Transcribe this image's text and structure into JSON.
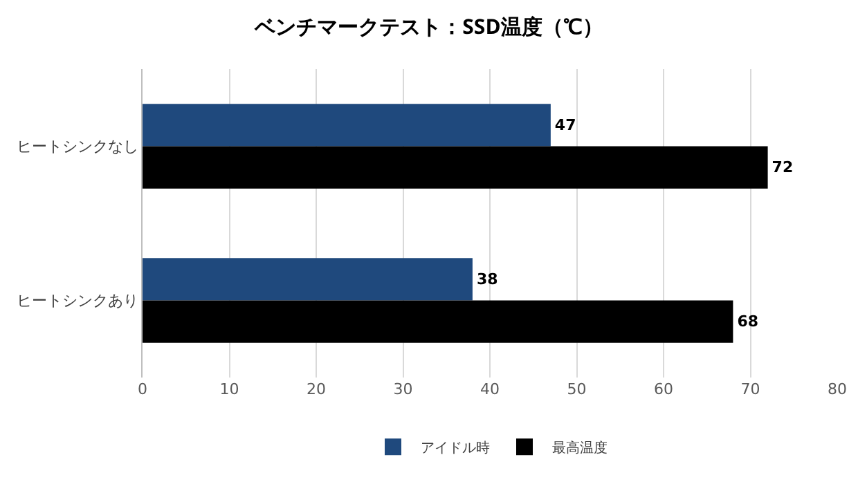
{
  "chart_data": {
    "type": "bar",
    "orientation": "horizontal",
    "title": "ベンチマークテスト：SSD温度（℃）",
    "categories": [
      "ヒートシンクなし",
      "ヒートシンクあり"
    ],
    "series": [
      {
        "name": "アイドル時",
        "color": "#1f497d",
        "values": [
          47,
          38
        ]
      },
      {
        "name": "最高温度",
        "color": "#000000",
        "values": [
          72,
          68
        ]
      }
    ],
    "xlim": [
      0,
      80
    ],
    "xticks": [
      0,
      10,
      20,
      30,
      40,
      50,
      60,
      70,
      80
    ],
    "grid": "x",
    "legend": "bottom",
    "data_labels": true
  }
}
